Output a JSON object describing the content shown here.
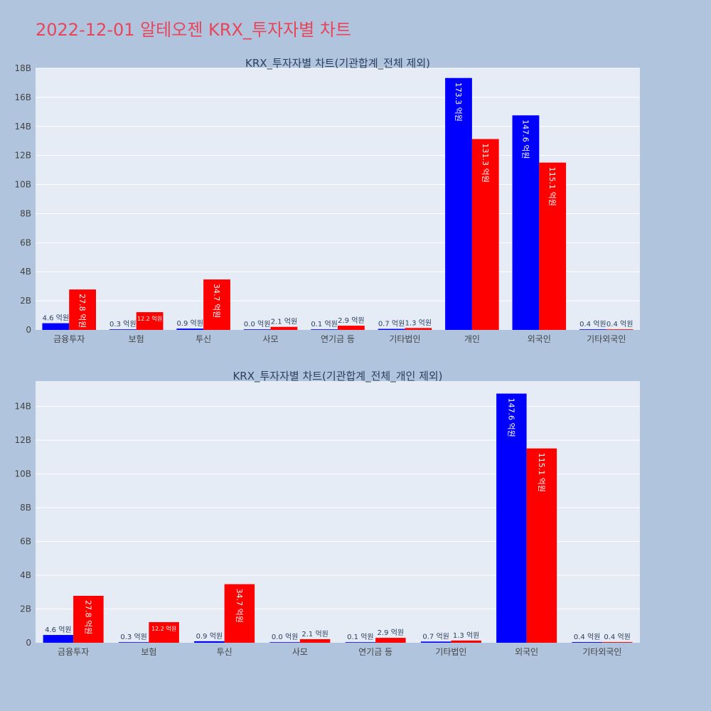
{
  "title": "2022-12-01 알테오젠 KRX_투자자별 차트",
  "colors": {
    "buy": "#0000ff",
    "sell": "#ff0000",
    "plot_bg": "#e5ecf6",
    "page_bg": "#b0c4de",
    "title": "#e8455a"
  },
  "chart_data": [
    {
      "type": "bar",
      "title": "KRX_투자자별 차트(기관합계_전체 제외)",
      "categories": [
        "금융투자",
        "보험",
        "투신",
        "사모",
        "연기금 등",
        "기타법인",
        "개인",
        "외국인",
        "기타외국인"
      ],
      "series": [
        {
          "values": [
            460000000,
            30000000,
            90000000,
            0,
            10000000,
            70000000,
            17330000000,
            14760000000,
            40000000
          ],
          "labels": [
            "4.6 억원",
            "0.3 억원",
            "0.9 억원",
            "0.0 억원",
            "0.1 억원",
            "0.7 억원",
            "173.3 억원",
            "147.6 억원",
            "0.4 억원"
          ]
        },
        {
          "values": [
            2780000000,
            1220000000,
            3470000000,
            210000000,
            290000000,
            130000000,
            13130000000,
            11510000000,
            40000000
          ],
          "labels": [
            "27.8 억원",
            "12.2 억원",
            "34.7 억원",
            "2.1 억원",
            "2.9 억원",
            "1.3 억원",
            "131.3 억원",
            "115.1 억원",
            "0.4 억원"
          ]
        }
      ],
      "ylim": [
        0,
        18000000000
      ],
      "yticks": [
        "0",
        "2B",
        "4B",
        "6B",
        "8B",
        "10B",
        "12B",
        "14B",
        "16B",
        "18B"
      ],
      "grid": true
    },
    {
      "type": "bar",
      "title": "KRX_투자자별 차트(기관합계_전체_개인 제외)",
      "categories": [
        "금융투자",
        "보험",
        "투신",
        "사모",
        "연기금 등",
        "기타법인",
        "외국인",
        "기타외국인"
      ],
      "series": [
        {
          "values": [
            460000000,
            30000000,
            90000000,
            0,
            10000000,
            70000000,
            14760000000,
            40000000
          ],
          "labels": [
            "4.6 억원",
            "0.3 억원",
            "0.9 억원",
            "0.0 억원",
            "0.1 억원",
            "0.7 억원",
            "147.6 억원",
            "0.4 억원"
          ]
        },
        {
          "values": [
            2780000000,
            1220000000,
            3470000000,
            210000000,
            290000000,
            130000000,
            11510000000,
            40000000
          ],
          "labels": [
            "27.8 억원",
            "12.2 억원",
            "34.7 억원",
            "2.1 억원",
            "2.9 억원",
            "1.3 억원",
            "115.1 억원",
            "0.4 억원"
          ]
        }
      ],
      "ylim": [
        0,
        15500000000
      ],
      "yticks": [
        "0",
        "2B",
        "4B",
        "6B",
        "8B",
        "10B",
        "12B",
        "14B"
      ],
      "grid": true
    }
  ]
}
